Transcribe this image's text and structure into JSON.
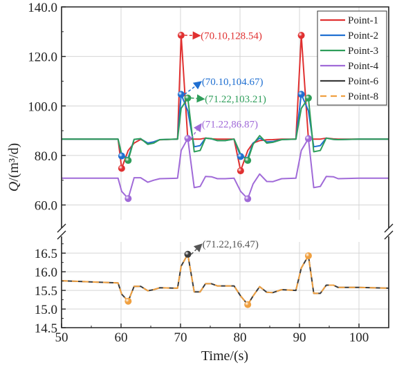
{
  "chart_data": {
    "type": "line",
    "xlabel": "Time/(s)",
    "ylabel": "Q/(m³/d)",
    "ylabel_italic": "Q",
    "ylabel_unit": "/(m³/d)",
    "xlim": [
      50,
      105
    ],
    "xticks": [
      "50",
      "60",
      "70",
      "80",
      "90",
      "100"
    ],
    "broken_y_axis": true,
    "upper_ylim": [
      54,
      140
    ],
    "upper_yticks": [
      "60.0",
      "80.0",
      "100.0",
      "120.0",
      "140.0"
    ],
    "lower_ylim": [
      14.5,
      16.8
    ],
    "lower_yticks": [
      "14.5",
      "15.0",
      "15.5",
      "16.0",
      "16.5"
    ],
    "grid": true,
    "legend_position": "top-right",
    "x": [
      50,
      59.5,
      60.1,
      61.2,
      62.2,
      63.3,
      64.5,
      65.5,
      66.5,
      69.5,
      70.1,
      71.22,
      72.3,
      73.3,
      74.2,
      75.2,
      76.2,
      77.5,
      79,
      80.1,
      81.3,
      82.2,
      83.3,
      84.5,
      85.5,
      87,
      89.4,
      90.3,
      91.5,
      92.4,
      93.5,
      94.5,
      95.7,
      96.5,
      100,
      105
    ],
    "series": [
      {
        "name": "Point-1",
        "color": "#e03030",
        "panel": "upper",
        "dash": false,
        "values": [
          86.6,
          86.6,
          74.8,
          82,
          85,
          86.5,
          85,
          85.5,
          86.3,
          86.6,
          128.54,
          86.6,
          86.6,
          86.6,
          87,
          86.7,
          86.6,
          86.6,
          86.6,
          73.8,
          82,
          85,
          86,
          86.3,
          86.4,
          86.6,
          86.6,
          128.5,
          86.6,
          86.6,
          86.6,
          87,
          86.7,
          86.6,
          86.6,
          86.6
        ]
      },
      {
        "name": "Point-2",
        "color": "#1f6fd1",
        "panel": "upper",
        "dash": false,
        "values": [
          86.6,
          86.6,
          79.8,
          79,
          86.5,
          86.7,
          85,
          85.5,
          86.4,
          86.6,
          104.67,
          98,
          83.5,
          84,
          87,
          86.7,
          86,
          86,
          86.6,
          79.6,
          79,
          85,
          87,
          85.5,
          85.6,
          86.4,
          86.6,
          104.7,
          98,
          83.5,
          84,
          87,
          86.5,
          86.4,
          86.6,
          86.6
        ]
      },
      {
        "name": "Point-3",
        "color": "#2e9e5a",
        "panel": "upper",
        "dash": false,
        "values": [
          86.6,
          86.6,
          80.5,
          78,
          86.5,
          86.8,
          84.5,
          85,
          86.4,
          86.6,
          99,
          103.21,
          81.5,
          82,
          87,
          86.8,
          86,
          86,
          86.6,
          80.5,
          78,
          84.5,
          88,
          85,
          85.3,
          86.4,
          86.6,
          99,
          103.2,
          81.5,
          82,
          87,
          86.5,
          86.4,
          86.6,
          86.6
        ]
      },
      {
        "name": "Point-4",
        "color": "#a06ad8",
        "panel": "upper",
        "dash": false,
        "values": [
          70.8,
          70.8,
          65.5,
          62.6,
          71,
          71,
          69.2,
          70,
          70.6,
          70.8,
          82,
          86.87,
          67,
          67.5,
          71.5,
          71.4,
          70.6,
          70.6,
          70.8,
          65.5,
          62.5,
          68.5,
          72.5,
          69.5,
          69.4,
          70.6,
          70.8,
          82,
          86.8,
          67,
          67.5,
          71.5,
          71.4,
          70.6,
          70.8,
          70.8
        ]
      },
      {
        "name": "Point-6",
        "color": "#3a3a3a",
        "panel": "lower",
        "dash": false,
        "values": [
          15.76,
          15.7,
          15.4,
          15.21,
          15.61,
          15.61,
          15.49,
          15.52,
          15.57,
          15.56,
          16.15,
          16.47,
          15.46,
          15.46,
          15.68,
          15.68,
          15.62,
          15.62,
          15.62,
          15.35,
          15.12,
          15.35,
          15.6,
          15.45,
          15.44,
          15.52,
          15.5,
          16.1,
          16.43,
          15.42,
          15.42,
          15.64,
          15.64,
          15.58,
          15.58,
          15.56
        ]
      },
      {
        "name": "Point-8",
        "color": "#f0a040",
        "panel": "lower",
        "dash": true,
        "values": [
          15.76,
          15.7,
          15.4,
          15.21,
          15.61,
          15.61,
          15.49,
          15.52,
          15.57,
          15.56,
          16.15,
          16.47,
          15.46,
          15.46,
          15.68,
          15.68,
          15.62,
          15.62,
          15.62,
          15.35,
          15.12,
          15.35,
          15.6,
          15.45,
          15.44,
          15.52,
          15.5,
          16.1,
          16.43,
          15.42,
          15.42,
          15.64,
          15.64,
          15.58,
          15.58,
          15.56
        ]
      }
    ],
    "markers": [
      {
        "series": "Point-1",
        "x": 60.1,
        "y": 74.8
      },
      {
        "series": "Point-1",
        "x": 70.1,
        "y": 128.54
      },
      {
        "series": "Point-1",
        "x": 80.1,
        "y": 73.8
      },
      {
        "series": "Point-1",
        "x": 90.3,
        "y": 128.5
      },
      {
        "series": "Point-2",
        "x": 60.1,
        "y": 79.8
      },
      {
        "series": "Point-2",
        "x": 70.1,
        "y": 104.67
      },
      {
        "series": "Point-2",
        "x": 80.1,
        "y": 79.6
      },
      {
        "series": "Point-2",
        "x": 90.3,
        "y": 104.7
      },
      {
        "series": "Point-3",
        "x": 61.2,
        "y": 78.0
      },
      {
        "series": "Point-3",
        "x": 71.22,
        "y": 103.21
      },
      {
        "series": "Point-3",
        "x": 81.3,
        "y": 78.0
      },
      {
        "series": "Point-3",
        "x": 91.5,
        "y": 103.2
      },
      {
        "series": "Point-4",
        "x": 61.2,
        "y": 62.6
      },
      {
        "series": "Point-4",
        "x": 71.22,
        "y": 86.87
      },
      {
        "series": "Point-4",
        "x": 81.3,
        "y": 62.5
      },
      {
        "series": "Point-4",
        "x": 91.5,
        "y": 86.8
      },
      {
        "series": "Point-6",
        "x": 71.22,
        "y": 16.47
      },
      {
        "series": "Point-8",
        "x": 61.2,
        "y": 15.21
      },
      {
        "series": "Point-8",
        "x": 81.3,
        "y": 15.12
      },
      {
        "series": "Point-8",
        "x": 91.5,
        "y": 16.43
      }
    ],
    "annotations": [
      {
        "text": "(70.10,128.54)",
        "color": "#e03030",
        "panel": "upper",
        "x": 70.1,
        "y": 128.54,
        "tx": 73.5,
        "ty": 128.4
      },
      {
        "text": "(70.10,104.67)",
        "color": "#1f6fd1",
        "panel": "upper",
        "x": 70.1,
        "y": 104.67,
        "tx": 73.7,
        "ty": 109.8
      },
      {
        "text": "(71.22,103.21)",
        "color": "#2e9e5a",
        "panel": "upper",
        "x": 71.22,
        "y": 103.21,
        "tx": 74.2,
        "ty": 102.8
      },
      {
        "text": "(71.22,86.87)",
        "color": "#a06ad8",
        "panel": "upper",
        "x": 71.22,
        "y": 86.87,
        "tx": 73.7,
        "ty": 92.7
      },
      {
        "text": "(71.22,16.47)",
        "color": "#555555",
        "panel": "lower",
        "x": 71.22,
        "y": 16.47,
        "tx": 73.8,
        "ty": 16.74
      }
    ]
  }
}
